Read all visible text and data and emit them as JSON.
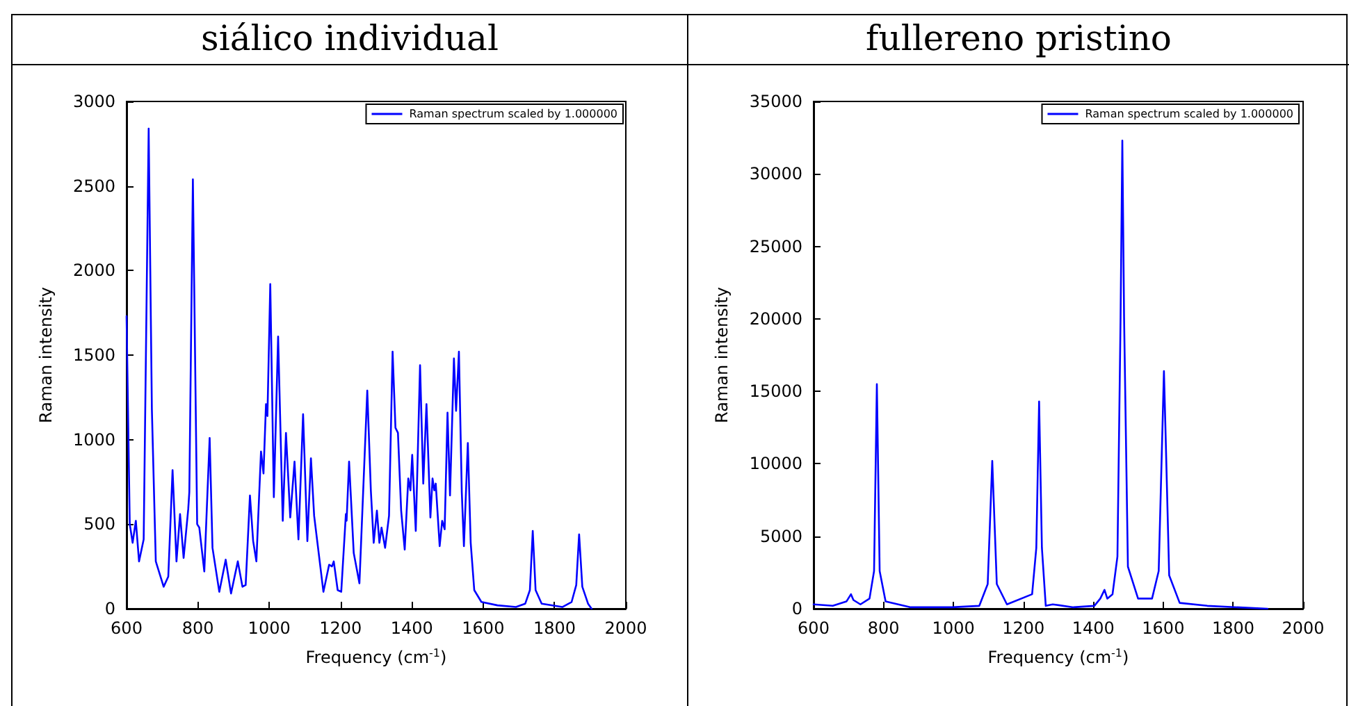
{
  "chart_data": [
    {
      "type": "line",
      "title": "siálico individual",
      "xlabel": "Frequency (cm$^{-1}$)",
      "ylabel": "Raman intensity",
      "xlim": [
        600,
        2000
      ],
      "ylim": [
        0,
        3000
      ],
      "xticks": [
        600,
        800,
        1000,
        1200,
        1400,
        1600,
        1800,
        2000
      ],
      "yticks": [
        0,
        500,
        1000,
        1500,
        2000,
        2500,
        3000
      ],
      "legend": "top right",
      "series": [
        {
          "name": "Raman spectrum scaled by 1.000000",
          "color": "#0000ff",
          "x": [
            600,
            609,
            617,
            626,
            635,
            648,
            662,
            671,
            682,
            704,
            717,
            729,
            740,
            750,
            760,
            773,
            776,
            786,
            798,
            804,
            818,
            833,
            841,
            860,
            878,
            893,
            912,
            925,
            934,
            946,
            955,
            964,
            977,
            984,
            991,
            995,
            1003,
            1013,
            1025,
            1038,
            1047,
            1059,
            1071,
            1082,
            1095,
            1107,
            1117,
            1126,
            1152,
            1168,
            1176,
            1181,
            1192,
            1202,
            1215,
            1217,
            1224,
            1237,
            1253,
            1275,
            1285,
            1293,
            1302,
            1309,
            1315,
            1325,
            1336,
            1346,
            1354,
            1361,
            1370,
            1380,
            1390,
            1396,
            1401,
            1411,
            1423,
            1432,
            1441,
            1452,
            1458,
            1463,
            1467,
            1478,
            1485,
            1492,
            1500,
            1507,
            1518,
            1524,
            1532,
            1540,
            1546,
            1557,
            1565,
            1575,
            1595,
            1640,
            1692,
            1718,
            1731,
            1739,
            1747,
            1764,
            1822,
            1848,
            1861,
            1869,
            1878,
            1894,
            1904
          ],
          "values": [
            1730,
            500,
            390,
            520,
            280,
            410,
            2840,
            1180,
            280,
            130,
            190,
            820,
            280,
            560,
            300,
            590,
            690,
            2540,
            500,
            480,
            220,
            1010,
            360,
            100,
            290,
            90,
            280,
            130,
            140,
            670,
            400,
            280,
            930,
            800,
            1210,
            1140,
            1920,
            660,
            1610,
            520,
            1040,
            540,
            870,
            410,
            1150,
            400,
            890,
            550,
            100,
            260,
            250,
            280,
            110,
            100,
            560,
            520,
            870,
            330,
            150,
            1290,
            700,
            390,
            580,
            390,
            480,
            360,
            550,
            1520,
            1070,
            1040,
            580,
            350,
            770,
            700,
            910,
            460,
            1440,
            740,
            1210,
            540,
            770,
            700,
            740,
            370,
            520,
            470,
            1160,
            670,
            1480,
            1170,
            1520,
            690,
            370,
            980,
            390,
            110,
            40,
            20,
            10,
            30,
            110,
            460,
            110,
            30,
            10,
            40,
            140,
            440,
            130,
            30,
            0
          ]
        }
      ]
    },
    {
      "type": "line",
      "title": "fullereno pristino",
      "xlabel": "Frequency (cm$^{-1}$)",
      "ylabel": "Raman intensity",
      "xlim": [
        600,
        2000
      ],
      "ylim": [
        0,
        35000
      ],
      "xticks": [
        600,
        800,
        1000,
        1200,
        1400,
        1600,
        1800,
        2000
      ],
      "yticks": [
        0,
        5000,
        10000,
        15000,
        20000,
        25000,
        30000,
        35000
      ],
      "legend": "top right",
      "series": [
        {
          "name": "Raman spectrum scaled by 1.000000",
          "color": "#0000ff",
          "x": [
            600,
            655,
            694,
            707,
            714,
            734,
            760,
            773,
            781,
            789,
            806,
            878,
            996,
            1074,
            1098,
            1111,
            1124,
            1153,
            1225,
            1237,
            1245,
            1253,
            1264,
            1284,
            1343,
            1403,
            1420,
            1432,
            1440,
            1455,
            1469,
            1478,
            1483,
            1488,
            1499,
            1528,
            1568,
            1587,
            1597,
            1602,
            1607,
            1617,
            1647,
            1726,
            1898
          ],
          "values": [
            300,
            200,
            500,
            1000,
            600,
            300,
            700,
            2600,
            15500,
            2600,
            500,
            100,
            100,
            200,
            1700,
            10200,
            1700,
            300,
            1000,
            4200,
            14300,
            4200,
            200,
            300,
            100,
            200,
            700,
            1300,
            700,
            1000,
            3600,
            20100,
            32300,
            20100,
            2900,
            700,
            700,
            2600,
            11800,
            16400,
            11800,
            2300,
            400,
            200,
            0
          ]
        }
      ]
    }
  ]
}
